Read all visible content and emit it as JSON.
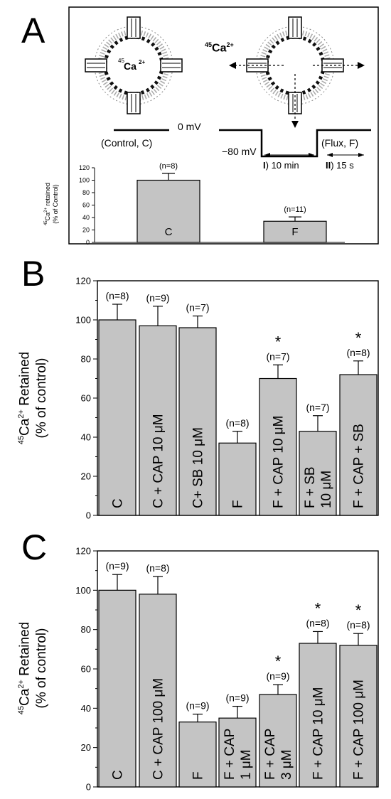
{
  "panels": {
    "a": {
      "letter": "A",
      "ca_label": "Ca",
      "ca_mass": "45",
      "ca_charge": "2+",
      "protocol": {
        "zero_mv": "0 mV",
        "control_label": "(Control, C)",
        "neg_mv": "−80 mV",
        "step1_num": "I",
        "step1_time": ") 10 min",
        "flux_label": "(Flux, F)",
        "step2_num": "II",
        "step2_time": ") 15 s"
      },
      "ylabel_line1_mass": "45",
      "ylabel_line1_ion": "Ca",
      "ylabel_line1_charge": "2+",
      "ylabel_line1_rest": " retained",
      "ylabel_line2": "(% of Control)"
    },
    "b": {
      "letter": "B",
      "ylabel_mass": "45",
      "ylabel_ion": "Ca",
      "ylabel_charge": "2+",
      "ylabel_rest": " Retained",
      "ylabel_line2": "(% of control)"
    },
    "c": {
      "letter": "C",
      "ylabel_mass": "45",
      "ylabel_ion": "Ca",
      "ylabel_charge": "2+",
      "ylabel_rest": " Retained",
      "ylabel_line2": "(% of control)"
    }
  },
  "chart_data": [
    {
      "type": "bar",
      "panel": "A",
      "ylim": [
        0,
        120
      ],
      "yticks": [
        "0",
        "20",
        "40",
        "60",
        "80",
        "100",
        "120"
      ],
      "categories": [
        "C",
        "F"
      ],
      "values": [
        100,
        34
      ],
      "errors": [
        11,
        7
      ],
      "n_labels": [
        "(n=8)",
        "(n=11)"
      ],
      "grid": false
    },
    {
      "type": "bar",
      "panel": "B",
      "ylim": [
        0,
        120
      ],
      "yticks": [
        "0",
        "20",
        "40",
        "60",
        "80",
        "100",
        "120"
      ],
      "categories": [
        [
          "C"
        ],
        [
          "C + CAP 10 μM"
        ],
        [
          "C+ SB 10 μM"
        ],
        [
          "F"
        ],
        [
          "F + CAP 10 μM"
        ],
        [
          "F + SB",
          "10 μM"
        ],
        [
          "F + CAP + SB"
        ]
      ],
      "values": [
        100,
        97,
        96,
        37,
        70,
        43,
        72
      ],
      "errors": [
        8,
        10,
        6,
        6,
        7,
        8,
        7
      ],
      "n_labels": [
        "(n=8)",
        "(n=9)",
        "(n=7)",
        "(n=8)",
        "(n=7)",
        "(n=7)",
        "(n=8)"
      ],
      "significant": [
        false,
        false,
        false,
        false,
        true,
        false,
        true
      ],
      "significance_marker": "*",
      "grid": false
    },
    {
      "type": "bar",
      "panel": "C",
      "ylim": [
        0,
        120
      ],
      "yticks": [
        "0",
        "20",
        "40",
        "60",
        "80",
        "100",
        "120"
      ],
      "categories": [
        [
          "C"
        ],
        [
          "C + CAP 100 μM"
        ],
        [
          "F"
        ],
        [
          "F + CAP",
          "1 μM"
        ],
        [
          "F + CAP",
          "3 μM"
        ],
        [
          "F + CAP 10 μM"
        ],
        [
          "F + CAP 100 μM"
        ]
      ],
      "values": [
        100,
        98,
        33,
        35,
        47,
        73,
        72
      ],
      "errors": [
        8,
        9,
        4,
        6,
        5,
        6,
        6
      ],
      "n_labels": [
        "(n=9)",
        "(n=8)",
        "(n=9)",
        "(n=9)",
        "(n=9)",
        "(n=8)",
        "(n=8)"
      ],
      "significant": [
        false,
        false,
        false,
        false,
        true,
        true,
        true
      ],
      "significance_marker": "*",
      "grid": false
    }
  ]
}
